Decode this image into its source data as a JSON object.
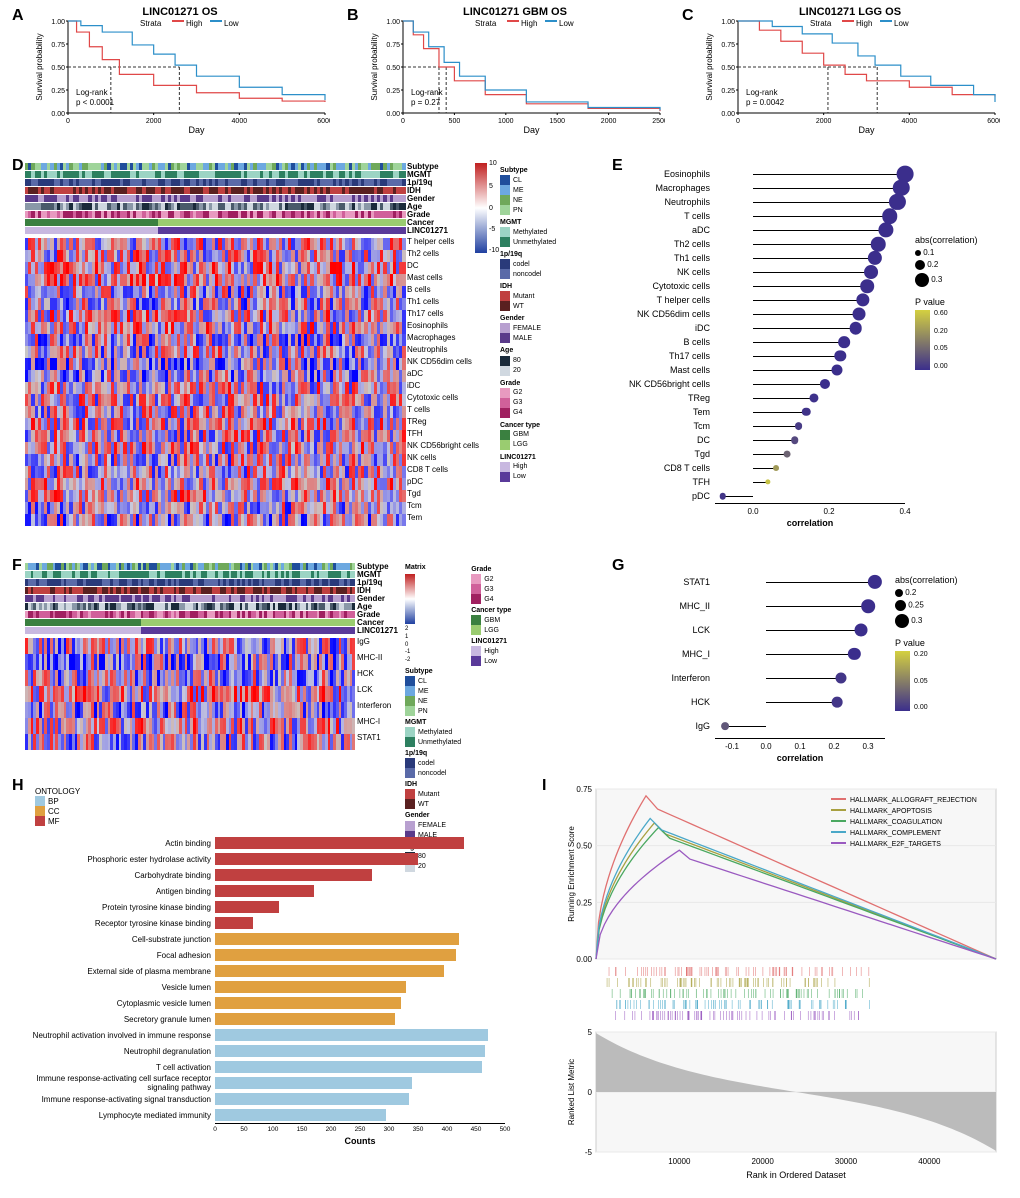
{
  "colors": {
    "high": "#e04848",
    "low": "#2c8fc9",
    "dash": "#333",
    "purple": "#3b2e8c",
    "yellow": "#d4d040",
    "gray": "#888",
    "bp": "#9fc9e0",
    "cc": "#e0a040",
    "mf": "#c04040"
  },
  "panelA": {
    "label": "A",
    "title": "LINC01271 OS",
    "strata_label": "Strata",
    "high_label": "High",
    "low_label": "Low",
    "xlabel": "Day",
    "ylabel": "Survival probability",
    "xlim": [
      0,
      6000
    ],
    "xticks": [
      0,
      2000,
      4000,
      6000
    ],
    "ylim": [
      0,
      1.0
    ],
    "yticks": [
      0.0,
      0.25,
      0.5,
      0.75,
      1.0
    ],
    "pvalue_label": "Log-rank",
    "pvalue": "p < 0.0001",
    "high_curve": [
      [
        0,
        1.0
      ],
      [
        200,
        0.88
      ],
      [
        500,
        0.72
      ],
      [
        800,
        0.58
      ],
      [
        1200,
        0.42
      ],
      [
        2000,
        0.3
      ],
      [
        3000,
        0.22
      ],
      [
        4000,
        0.16
      ],
      [
        5000,
        0.13
      ],
      [
        6000,
        0.12
      ]
    ],
    "low_curve": [
      [
        0,
        1.0
      ],
      [
        300,
        0.95
      ],
      [
        800,
        0.88
      ],
      [
        1500,
        0.74
      ],
      [
        2000,
        0.64
      ],
      [
        2500,
        0.52
      ],
      [
        3000,
        0.4
      ],
      [
        4000,
        0.28
      ],
      [
        5000,
        0.2
      ],
      [
        6000,
        0.14
      ]
    ],
    "median_high_x": 1000,
    "median_low_x": 2600
  },
  "panelB": {
    "label": "B",
    "title": "LINC01271  GBM OS",
    "strata_label": "Strata",
    "high_label": "High",
    "low_label": "Low",
    "xlabel": "Day",
    "ylabel": "Survival probability",
    "xlim": [
      0,
      2500
    ],
    "xticks": [
      0,
      500,
      1000,
      1500,
      2000,
      2500
    ],
    "ylim": [
      0,
      1.0
    ],
    "yticks": [
      0.0,
      0.25,
      0.5,
      0.75,
      1.0
    ],
    "pvalue_label": "Log-rank",
    "pvalue": "p = 0.27",
    "high_curve": [
      [
        0,
        1.0
      ],
      [
        100,
        0.85
      ],
      [
        200,
        0.7
      ],
      [
        350,
        0.5
      ],
      [
        500,
        0.35
      ],
      [
        800,
        0.2
      ],
      [
        1200,
        0.1
      ],
      [
        1800,
        0.05
      ],
      [
        2500,
        0.02
      ]
    ],
    "low_curve": [
      [
        0,
        1.0
      ],
      [
        100,
        0.88
      ],
      [
        250,
        0.72
      ],
      [
        400,
        0.55
      ],
      [
        550,
        0.4
      ],
      [
        800,
        0.25
      ],
      [
        1200,
        0.12
      ],
      [
        1800,
        0.06
      ],
      [
        2500,
        0.03
      ]
    ],
    "median_high_x": 350,
    "median_low_x": 420
  },
  "panelC": {
    "label": "C",
    "title": "LINC01271  LGG OS",
    "strata_label": "Strata",
    "high_label": "High",
    "low_label": "Low",
    "xlabel": "Day",
    "ylabel": "Survival probability",
    "xlim": [
      0,
      6000
    ],
    "xticks": [
      0,
      2000,
      4000,
      6000
    ],
    "ylim": [
      0,
      1.0
    ],
    "yticks": [
      0.0,
      0.25,
      0.5,
      0.75,
      1.0
    ],
    "pvalue_label": "Log-rank",
    "pvalue": "p = 0.0042",
    "high_curve": [
      [
        0,
        1.0
      ],
      [
        500,
        0.9
      ],
      [
        1000,
        0.78
      ],
      [
        1500,
        0.65
      ],
      [
        2000,
        0.52
      ],
      [
        2500,
        0.42
      ],
      [
        3000,
        0.35
      ],
      [
        4000,
        0.28
      ],
      [
        5000,
        0.2
      ],
      [
        6000,
        0.18
      ]
    ],
    "low_curve": [
      [
        0,
        1.0
      ],
      [
        800,
        0.94
      ],
      [
        1500,
        0.86
      ],
      [
        2200,
        0.76
      ],
      [
        2800,
        0.62
      ],
      [
        3200,
        0.52
      ],
      [
        3800,
        0.4
      ],
      [
        4500,
        0.3
      ],
      [
        5500,
        0.2
      ],
      [
        6000,
        0.12
      ]
    ],
    "median_high_x": 2100,
    "median_low_x": 3250
  },
  "panelD": {
    "label": "D",
    "annotations": [
      "Subtype",
      "MGMT",
      "1p/19q",
      "IDH",
      "Gender",
      "Age",
      "Grade",
      "Cancer",
      "LINC01271"
    ],
    "heatmap_rows": [
      "T helper cells",
      "Th2 cells",
      "DC",
      "Mast cells",
      "B cells",
      "Th1 cells",
      "Th17 cells",
      "Eosinophils",
      "Macrophages",
      "Neutrophils",
      "NK CD56dim cells",
      "aDC",
      "iDC",
      "Cytotoxic cells",
      "T cells",
      "TReg",
      "TFH",
      "NK CD56bright cells",
      "NK cells",
      "CD8 T cells",
      "pDC",
      "Tgd",
      "Tcm",
      "Tem"
    ],
    "scale_label": "",
    "scale_min": -10,
    "scale_max": 10,
    "legends": {
      "Subtype": [
        [
          "CL",
          "#1f4e9c"
        ],
        [
          "ME",
          "#6ca8e0"
        ],
        [
          "NE",
          "#6fa85a"
        ],
        [
          "PN",
          "#9fd49a"
        ]
      ],
      "MGMT": [
        [
          "Methylated",
          "#9cd4c4"
        ],
        [
          "Unmethylated",
          "#2d8060"
        ]
      ],
      "1p/19q": [
        [
          "codel",
          "#2a3a7a"
        ],
        [
          "noncodel",
          "#5a6aa8"
        ]
      ],
      "IDH": [
        [
          "Mutant",
          "#c04040"
        ],
        [
          "WT",
          "#5a2020"
        ]
      ],
      "Gender": [
        [
          "FEMALE",
          "#b8a0d0"
        ],
        [
          "MALE",
          "#5a3a8a"
        ]
      ],
      "Age": [
        [
          "80",
          "#1a2a3a"
        ],
        [
          "20",
          "#d0d8e0"
        ]
      ],
      "Grade": [
        [
          "G2",
          "#e89ac0"
        ],
        [
          "G3",
          "#d0609a"
        ],
        [
          "G4",
          "#a02060"
        ]
      ],
      "Cancer type": [
        [
          "GBM",
          "#3a8040"
        ],
        [
          "LGG",
          "#9acc70"
        ]
      ],
      "LINC01271": [
        [
          "High",
          "#c8b8e0"
        ],
        [
          "Low",
          "#5a3a9a"
        ]
      ]
    }
  },
  "panelE": {
    "label": "E",
    "xlabel": "correlation",
    "xlim": [
      -0.1,
      0.4
    ],
    "xticks": [
      0.0,
      0.2,
      0.4
    ],
    "abs_corr_label": "abs(correlation)",
    "abs_corr_sizes": [
      [
        0.1,
        6
      ],
      [
        0.2,
        10
      ],
      [
        0.3,
        14
      ]
    ],
    "pval_label": "P value",
    "pval_scale": [
      0.6,
      0.2,
      0.05,
      0.0
    ],
    "items": [
      {
        "name": "Eosinophils",
        "corr": 0.4,
        "p": 0.0
      },
      {
        "name": "Macrophages",
        "corr": 0.39,
        "p": 0.0
      },
      {
        "name": "Neutrophils",
        "corr": 0.38,
        "p": 0.0
      },
      {
        "name": "T cells",
        "corr": 0.36,
        "p": 0.0
      },
      {
        "name": "aDC",
        "corr": 0.35,
        "p": 0.0
      },
      {
        "name": "Th2 cells",
        "corr": 0.33,
        "p": 0.0
      },
      {
        "name": "Th1 cells",
        "corr": 0.32,
        "p": 0.0
      },
      {
        "name": "NK cells",
        "corr": 0.31,
        "p": 0.0
      },
      {
        "name": "Cytotoxic cells",
        "corr": 0.3,
        "p": 0.0
      },
      {
        "name": "T helper cells",
        "corr": 0.29,
        "p": 0.0
      },
      {
        "name": "NK CD56dim cells",
        "corr": 0.28,
        "p": 0.0
      },
      {
        "name": "iDC",
        "corr": 0.27,
        "p": 0.0
      },
      {
        "name": "B cells",
        "corr": 0.24,
        "p": 0.0
      },
      {
        "name": "Th17 cells",
        "corr": 0.23,
        "p": 0.0
      },
      {
        "name": "Mast cells",
        "corr": 0.22,
        "p": 0.0
      },
      {
        "name": "NK CD56bright cells",
        "corr": 0.19,
        "p": 0.0
      },
      {
        "name": "TReg",
        "corr": 0.16,
        "p": 0.01
      },
      {
        "name": "Tem",
        "corr": 0.14,
        "p": 0.02
      },
      {
        "name": "Tcm",
        "corr": 0.12,
        "p": 0.05
      },
      {
        "name": "DC",
        "corr": 0.11,
        "p": 0.1
      },
      {
        "name": "Tgd",
        "corr": 0.09,
        "p": 0.2
      },
      {
        "name": "CD8 T cells",
        "corr": 0.06,
        "p": 0.4
      },
      {
        "name": "TFH",
        "corr": 0.04,
        "p": 0.55
      },
      {
        "name": "pDC",
        "corr": -0.08,
        "p": 0.03
      }
    ]
  },
  "panelF": {
    "label": "F",
    "annotations": [
      "Subtype",
      "MGMT",
      "1p/19q",
      "IDH",
      "Gender",
      "Age",
      "Grade",
      "Cancer",
      "LINC01271"
    ],
    "heatmap_rows": [
      "IgG",
      "MHC-II",
      "HCK",
      "LCK",
      "Interferon",
      "MHC-I",
      "STAT1"
    ],
    "matrix_label": "Matrix",
    "scale": [
      -2,
      -1,
      0,
      1,
      2
    ]
  },
  "panelG": {
    "label": "G",
    "xlabel": "correlation",
    "xlim": [
      -0.15,
      0.35
    ],
    "xticks": [
      -0.1,
      0.0,
      0.1,
      0.2,
      0.3
    ],
    "abs_corr_label": "abs(correlation)",
    "abs_corr_sizes": [
      [
        0.2,
        8
      ],
      [
        0.25,
        11
      ],
      [
        0.3,
        14
      ]
    ],
    "pval_label": "P value",
    "pval_scale": [
      0.2,
      0.05,
      0.0
    ],
    "items": [
      {
        "name": "STAT1",
        "corr": 0.32,
        "p": 0.0
      },
      {
        "name": "MHC_II",
        "corr": 0.3,
        "p": 0.0
      },
      {
        "name": "LCK",
        "corr": 0.28,
        "p": 0.0
      },
      {
        "name": "MHC_I",
        "corr": 0.26,
        "p": 0.0
      },
      {
        "name": "Interferon",
        "corr": 0.22,
        "p": 0.01
      },
      {
        "name": "HCK",
        "corr": 0.21,
        "p": 0.01
      },
      {
        "name": "IgG",
        "corr": -0.12,
        "p": 0.05
      }
    ]
  },
  "panelH": {
    "label": "H",
    "ontology_label": "ONTOLOGY",
    "ontology_colors": {
      "BP": "#9fc9e0",
      "CC": "#e0a040",
      "MF": "#c04040"
    },
    "xlabel": "Counts",
    "xlim": [
      0,
      500
    ],
    "xticks": [
      0,
      50,
      100,
      150,
      200,
      250,
      300,
      350,
      400,
      450,
      500
    ],
    "items": [
      {
        "name": "Actin binding",
        "ont": "MF",
        "count": 430
      },
      {
        "name": "Phosphoric ester hydrolase activity",
        "ont": "MF",
        "count": 350
      },
      {
        "name": "Carbohydrate binding",
        "ont": "MF",
        "count": 270
      },
      {
        "name": "Antigen binding",
        "ont": "MF",
        "count": 170
      },
      {
        "name": "Protein tyrosine kinase binding",
        "ont": "MF",
        "count": 110
      },
      {
        "name": "Receptor tyrosine kinase binding",
        "ont": "MF",
        "count": 65
      },
      {
        "name": "Cell-substrate junction",
        "ont": "CC",
        "count": 420
      },
      {
        "name": "Focal adhesion",
        "ont": "CC",
        "count": 415
      },
      {
        "name": "External side of plasma membrane",
        "ont": "CC",
        "count": 395
      },
      {
        "name": "Vesicle lumen",
        "ont": "CC",
        "count": 330
      },
      {
        "name": "Cytoplasmic vesicle lumen",
        "ont": "CC",
        "count": 320
      },
      {
        "name": "Secretory granule lumen",
        "ont": "CC",
        "count": 310
      },
      {
        "name": "Neutrophil activation involved in immune response",
        "ont": "BP",
        "count": 470
      },
      {
        "name": "Neutrophil degranulation",
        "ont": "BP",
        "count": 465
      },
      {
        "name": "T cell activation",
        "ont": "BP",
        "count": 460
      },
      {
        "name": "Immune response-activating cell surface receptor signaling pathway",
        "ont": "BP",
        "count": 340
      },
      {
        "name": "Immune response-activating signal transduction",
        "ont": "BP",
        "count": 335
      },
      {
        "name": "Lymphocyte mediated immunity",
        "ont": "BP",
        "count": 295
      }
    ]
  },
  "panelI": {
    "label": "I",
    "ylabel_top": "Running Enrichment Score",
    "ylabel_bot": "Ranked List Metric",
    "xlabel": "Rank in Ordered Dataset",
    "xlim": [
      0,
      48000
    ],
    "xticks": [
      10000,
      20000,
      30000,
      40000
    ],
    "ylim_top": [
      0,
      0.75
    ],
    "yticks_top": [
      0.0,
      0.25,
      0.5,
      0.75
    ],
    "ylim_bot": [
      -5,
      5
    ],
    "yticks_bot": [
      -5,
      0,
      5
    ],
    "hallmarks": [
      {
        "name": "HALLMARK_ALLOGRAFT_REJECTION",
        "color": "#e07070",
        "peak": 0.72,
        "peak_x": 6000
      },
      {
        "name": "HALLMARK_APOPTOSIS",
        "color": "#a8a040",
        "peak": 0.6,
        "peak_x": 7000
      },
      {
        "name": "HALLMARK_COAGULATION",
        "color": "#4aa860",
        "peak": 0.58,
        "peak_x": 7500
      },
      {
        "name": "HALLMARK_COMPLEMENT",
        "color": "#4aa8c8",
        "peak": 0.62,
        "peak_x": 6500
      },
      {
        "name": "HALLMARK_E2F_TARGETS",
        "color": "#9a5ac0",
        "peak": 0.48,
        "peak_x": 10000
      }
    ]
  }
}
